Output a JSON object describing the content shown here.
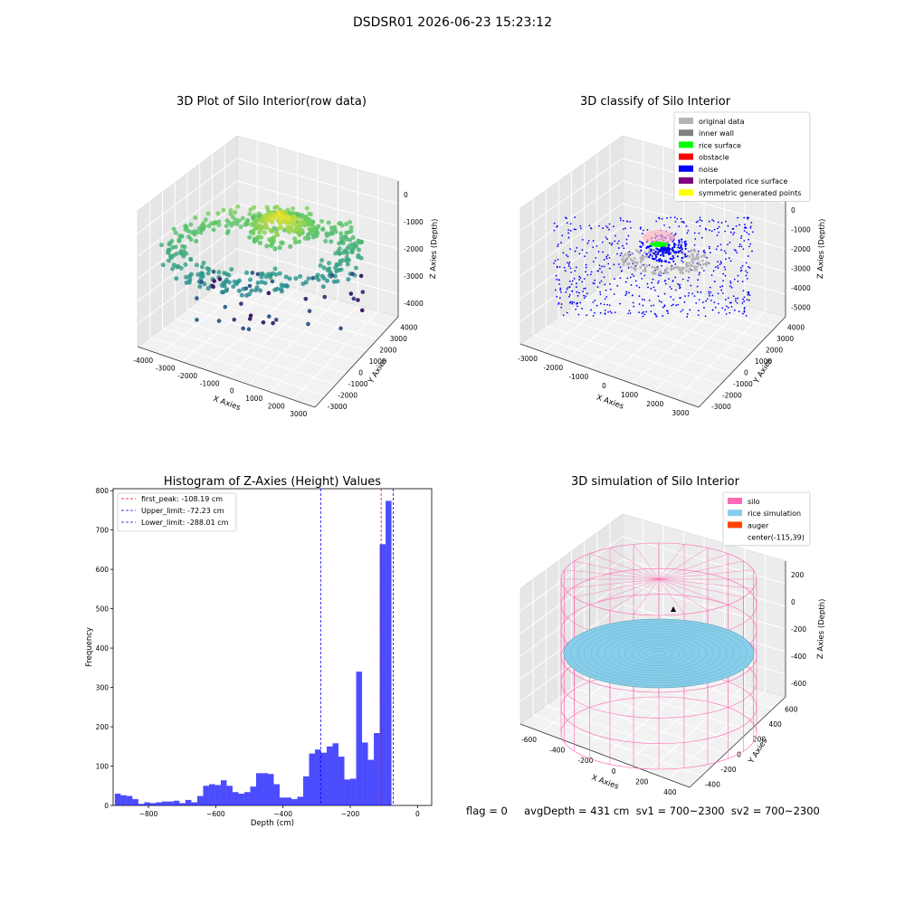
{
  "figure": {
    "suptitle": "DSDSR01 2026-06-23 15:23:12",
    "footer": "flag = 0     avgDepth = 431 cm  sv1 = 700~2300  sv2 = 700~2300"
  },
  "chart_data": [
    {
      "type": "scatter",
      "dim": "3d",
      "title": "3D Plot of Silo Interior(row data)",
      "xlabel": "X Axies",
      "ylabel": "Y Axies",
      "zlabel": "Z Axies (Depth)",
      "xticks": [
        "-4000",
        "-3000",
        "-2000",
        "-1000",
        "0",
        "1000",
        "2000",
        "3000"
      ],
      "yticks": [
        "-3000",
        "-2000",
        "-1000",
        "0",
        "1000",
        "2000",
        "3000",
        "4000"
      ],
      "zticks": [
        "0",
        "-1000",
        "-2000",
        "-3000",
        "-4000"
      ],
      "colormap": "viridis"
    },
    {
      "type": "scatter",
      "dim": "3d",
      "title": "3D classify of Silo Interior",
      "xlabel": "X Axies",
      "ylabel": "Y Axies",
      "zlabel": "Z Axies (Depth)",
      "xticks": [
        "-3000",
        "-2000",
        "-1000",
        "0",
        "1000",
        "2000",
        "3000"
      ],
      "yticks": [
        "-3000",
        "-2000",
        "-1000",
        "0",
        "1000",
        "2000",
        "3000",
        "4000"
      ],
      "zticks": [
        "1000",
        "0",
        "-1000",
        "-2000",
        "-3000",
        "-4000",
        "-5000"
      ],
      "legend_position": "top-right",
      "legend": [
        {
          "label": "original data",
          "color": "#b4b4b4"
        },
        {
          "label": "inner wall",
          "color": "#808080"
        },
        {
          "label": "rice surface",
          "color": "#00ff00"
        },
        {
          "label": "obstacle",
          "color": "#ff0000"
        },
        {
          "label": "noise",
          "color": "#0000ff"
        },
        {
          "label": "interpolated rice surface",
          "color": "#800080"
        },
        {
          "label": "symmetric generated points",
          "color": "#ffff00"
        }
      ]
    },
    {
      "type": "bar",
      "title": "Histogram of Z-Axies (Height) Values",
      "xlabel": "Depth (cm)",
      "ylabel": "Frequency",
      "xlim": [
        -905,
        42
      ],
      "ylim": [
        0,
        805
      ],
      "xticks": [
        -800,
        -600,
        -400,
        -200,
        0
      ],
      "yticks": [
        0,
        100,
        200,
        300,
        400,
        500,
        600,
        700,
        800
      ],
      "bar_color": "#0000ff",
      "bin_width": 17.5,
      "bin_start": -900,
      "values": [
        30,
        26,
        24,
        16,
        4,
        8,
        6,
        8,
        10,
        10,
        12,
        6,
        14,
        8,
        24,
        50,
        54,
        52,
        64,
        50,
        34,
        30,
        34,
        48,
        82,
        82,
        80,
        54,
        20,
        20,
        16,
        22,
        74,
        132,
        142,
        134,
        150,
        158,
        124,
        66,
        68,
        340,
        160,
        116,
        184,
        664,
        774
      ],
      "vlines": [
        {
          "label": "first_peak: -108.19 cm",
          "x": -108.19,
          "color": "#ff0000"
        },
        {
          "label": "Upper_limit: -72.23 cm",
          "x": -72.23,
          "color": "#0000ff"
        },
        {
          "label": "Lower_limit: -288.01 cm",
          "x": -288.01,
          "color": "#0000ff"
        }
      ],
      "legend_position": "top-left"
    },
    {
      "type": "surface",
      "dim": "3d",
      "title": "3D simulation of Silo Interior",
      "xlabel": "X Axies",
      "ylabel": "Y Axies",
      "zlabel": "Z Axies (Depth)",
      "xticks": [
        "-600",
        "-400",
        "-200",
        "0",
        "200",
        "400"
      ],
      "yticks": [
        "-400",
        "-200",
        "0",
        "200",
        "400",
        "600"
      ],
      "zticks": [
        "200",
        "0",
        "-200",
        "-400",
        "-600"
      ],
      "legend_position": "top-right",
      "legend": [
        {
          "label": "silo",
          "color": "#ff69b4"
        },
        {
          "label": "rice simulation",
          "color": "#87ceeb"
        },
        {
          "label": "auger",
          "color": "#ff4500"
        },
        {
          "label": "center(-115,39)",
          "color": ""
        }
      ]
    }
  ]
}
